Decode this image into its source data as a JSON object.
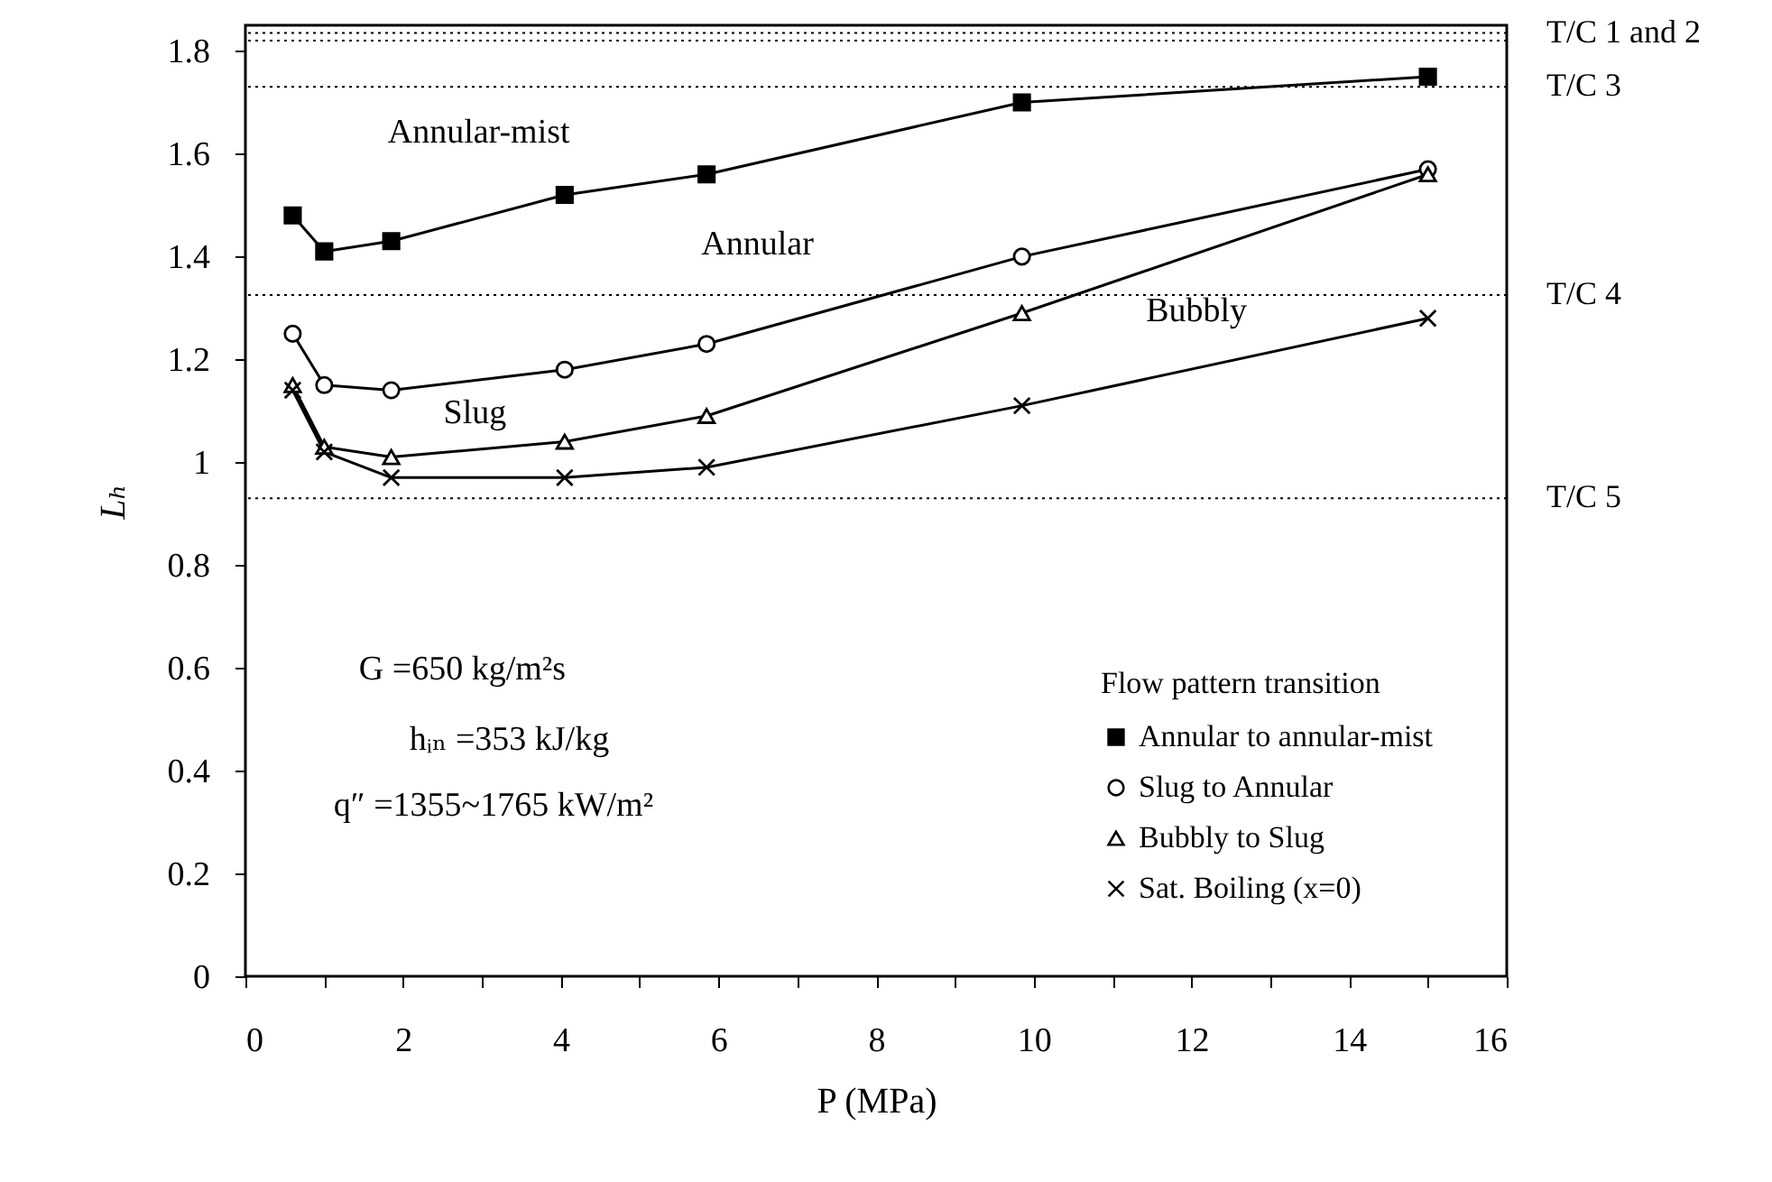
{
  "chart_data": {
    "type": "line",
    "xlabel": "P  (MPa)",
    "ylabel": "Lₕ",
    "legend_title": "Flow pattern transition",
    "legend": "bottom right",
    "grid": false,
    "x": [
      0.6,
      1.0,
      1.85,
      4.05,
      5.85,
      9.85,
      15.0
    ],
    "series": [
      {
        "name": "Annular to annular-mist",
        "color": "#000000",
        "marker": "square",
        "values": [
          1.48,
          1.41,
          1.43,
          1.52,
          1.56,
          1.7,
          1.75
        ]
      },
      {
        "name": "Slug to Annular",
        "color": "#000000",
        "marker": "circle",
        "values": [
          1.25,
          1.15,
          1.14,
          1.18,
          1.23,
          1.4,
          1.57
        ]
      },
      {
        "name": "Bubbly to Slug",
        "color": "#000000",
        "marker": "triangle",
        "values": [
          1.15,
          1.03,
          1.01,
          1.04,
          1.09,
          1.29,
          1.56
        ]
      },
      {
        "name": "Sat. Boiling (x=0)",
        "color": "#000000",
        "marker": "cross",
        "values": [
          1.14,
          1.02,
          0.97,
          0.97,
          0.99,
          1.11,
          1.28
        ]
      }
    ],
    "xlim": [
      0,
      16
    ],
    "xticks": [
      0,
      {
        "value": 1,
        "label": null
      },
      2,
      {
        "value": 3,
        "label": null
      },
      4,
      {
        "value": 5,
        "label": null
      },
      6,
      {
        "value": 7,
        "label": null
      },
      8,
      {
        "value": 9,
        "label": null
      },
      10,
      {
        "value": 11,
        "label": null
      },
      12,
      {
        "value": 13,
        "label": null
      },
      14,
      {
        "value": 15,
        "label": null
      },
      16
    ],
    "ylim": [
      0,
      1.85
    ],
    "yticks": [
      0,
      0.2,
      0.4,
      0.6,
      0.8,
      1,
      1.2,
      1.4,
      1.6,
      1.8
    ],
    "ref_lines": [
      {
        "axis": "y",
        "value": 1.835,
        "label": "T/C 1 and 2",
        "color": "#000000",
        "line_style": "dotted"
      },
      {
        "axis": "y",
        "value": 1.82,
        "label": null,
        "color": "#000000",
        "line_style": "dotted"
      },
      {
        "axis": "y",
        "value": 1.73,
        "label": "T/C 3",
        "color": "#000000",
        "line_style": "dotted"
      },
      {
        "axis": "y",
        "value": 1.325,
        "label": "T/C 4",
        "color": "#000000",
        "line_style": "dotted"
      },
      {
        "axis": "y",
        "value": 0.93,
        "label": "T/C 5",
        "color": "#000000",
        "line_style": "dotted"
      }
    ],
    "annotations": [
      "Annular-mist",
      "Annular",
      "Slug",
      "Bubbly",
      "G =650 kg/m²s",
      "hᵢₙ =353  kJ/kg",
      "q″ =1355~1765 kW/m²"
    ]
  }
}
